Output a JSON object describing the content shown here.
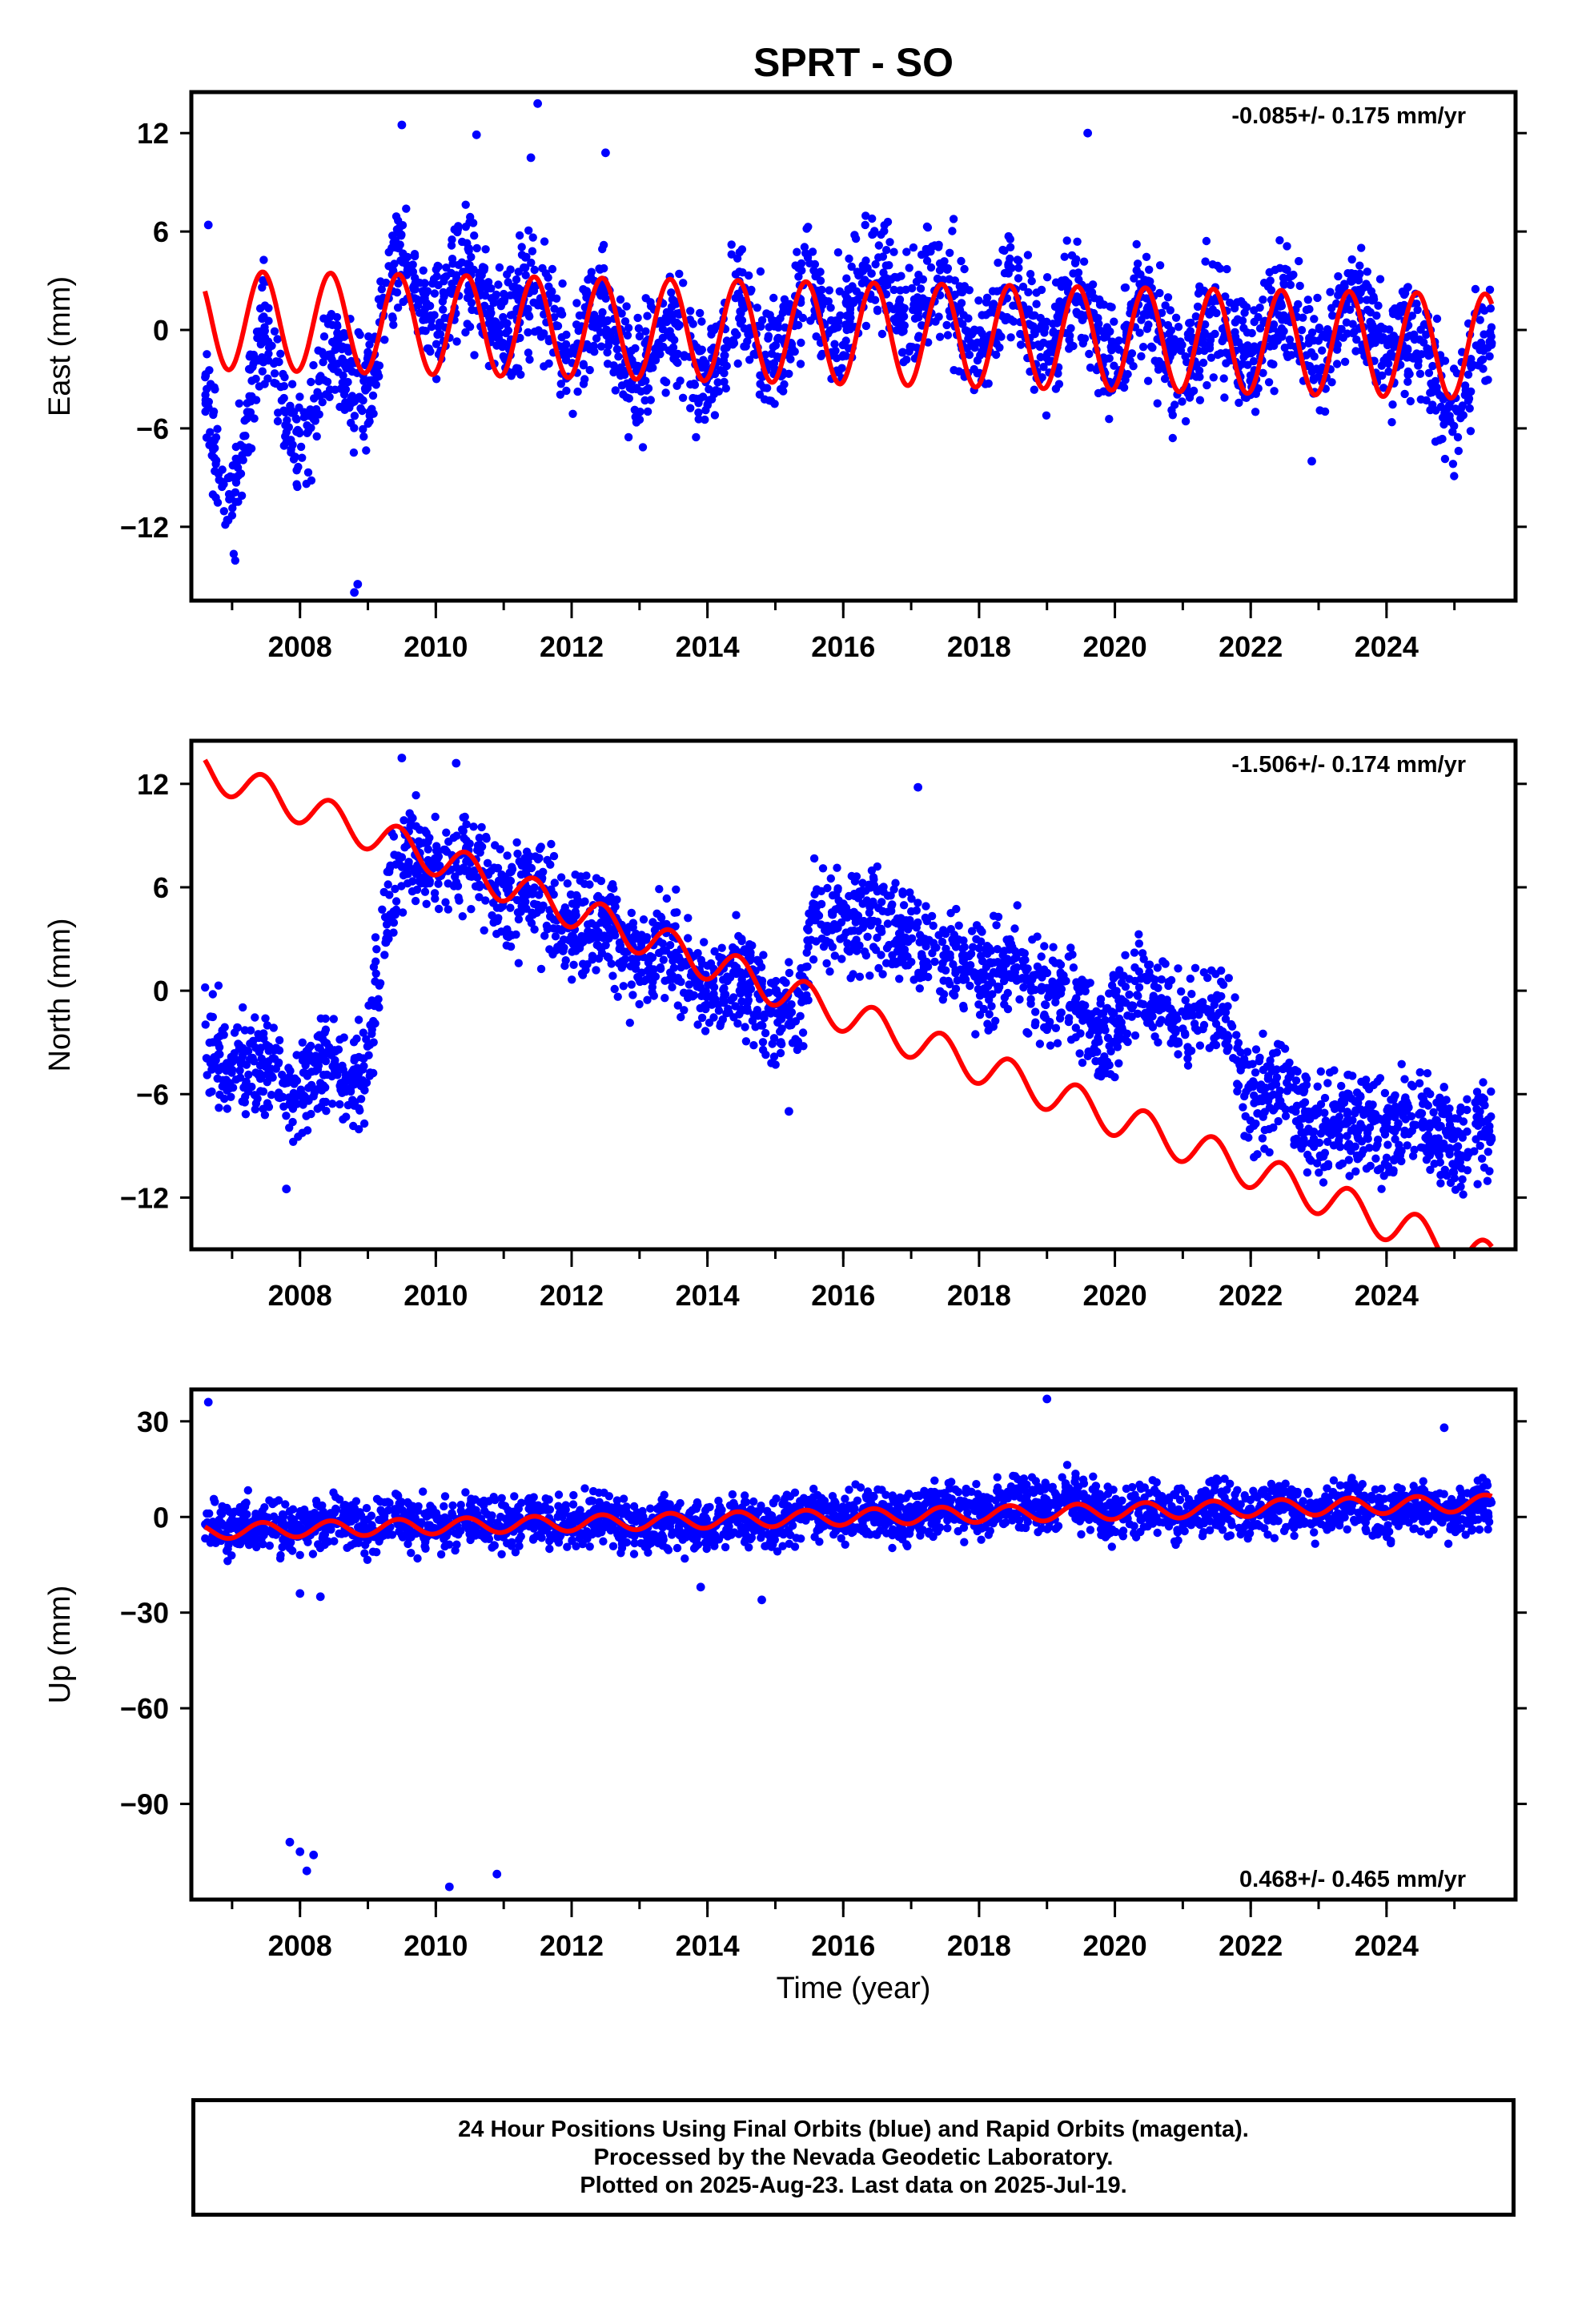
{
  "title": "SPRT - SO",
  "colors": {
    "observations": "#0000ff",
    "model": "#ff0000",
    "axes": "#000000"
  },
  "xaxis": {
    "label": "Time (year)",
    "range": [
      2006.4,
      2025.9
    ],
    "ticks": [
      2008,
      2010,
      2012,
      2014,
      2016,
      2018,
      2020,
      2022,
      2024
    ]
  },
  "footer": {
    "line1": "24 Hour Positions Using Final Orbits (blue) and Rapid Orbits (magenta).",
    "line2": "Processed by the Nevada Geodetic Laboratory.",
    "line3": "Plotted on 2025-Aug-23. Last data on 2025-Jul-19."
  },
  "chart_data": [
    {
      "type": "scatter",
      "component": "East",
      "ylabel": "East (mm)",
      "ylim": [
        -16.5,
        14.5
      ],
      "yticks": [
        12,
        6,
        0,
        -6,
        -12
      ],
      "velocity": "-0.085+/- 0.175 mm/yr",
      "velocity_position": "top-right",
      "data_start": 2006.6,
      "data_end": 2025.55,
      "series": [
        {
          "name": "Final Orbits (blue)",
          "kind": "daily-positions",
          "approx_trend": [
            [
              2006.6,
              -5
            ],
            [
              2007.0,
              -9
            ],
            [
              2007.5,
              -1
            ],
            [
              2008.0,
              -6
            ],
            [
              2008.5,
              -3
            ],
            [
              2009.0,
              -2
            ],
            [
              2009.5,
              3
            ],
            [
              2010.5,
              2
            ],
            [
              2012,
              0.5
            ],
            [
              2013,
              -1.5
            ],
            [
              2014,
              -1
            ],
            [
              2015,
              0
            ],
            [
              2016,
              2
            ],
            [
              2017,
              2.5
            ],
            [
              2018,
              1
            ],
            [
              2019,
              0.5
            ],
            [
              2020,
              0
            ],
            [
              2021,
              -0.5
            ],
            [
              2022,
              -0.5
            ],
            [
              2023,
              0
            ],
            [
              2024,
              0.5
            ],
            [
              2024.9,
              -4
            ],
            [
              2025.55,
              -2
            ]
          ],
          "approx_spread": 2.2,
          "outliers": [
            [
              2006.65,
              6.4
            ],
            [
              2008.85,
              -15.5
            ],
            [
              2008.8,
              -16
            ],
            [
              2009.5,
              12.5
            ],
            [
              2010.6,
              11.9
            ],
            [
              2011.4,
              10.5
            ],
            [
              2011.5,
              13.8
            ],
            [
              2012.5,
              10.8
            ],
            [
              2019.6,
              12
            ],
            [
              2022.9,
              -8
            ]
          ]
        },
        {
          "name": "Model",
          "kind": "fit",
          "offset": 0.6,
          "trend": -0.085,
          "amplitude": 3.0,
          "amplitude_end": 3.2
        }
      ]
    },
    {
      "type": "scatter",
      "component": "North",
      "ylabel": "North (mm)",
      "ylim": [
        -15.0,
        14.5
      ],
      "yticks": [
        12,
        6,
        0,
        -6,
        -12
      ],
      "velocity": "-1.506+/- 0.174 mm/yr",
      "velocity_position": "top-right",
      "data_start": 2006.6,
      "data_end": 2025.55,
      "series": [
        {
          "name": "Final Orbits (blue)",
          "kind": "daily-positions",
          "approx_trend": [
            [
              2006.6,
              -3
            ],
            [
              2007.5,
              -5
            ],
            [
              2008.5,
              -5
            ],
            [
              2008.9,
              -5
            ],
            [
              2009.3,
              5
            ],
            [
              2009.6,
              8
            ],
            [
              2010.5,
              7
            ],
            [
              2011.5,
              5
            ],
            [
              2012.5,
              3
            ],
            [
              2013.5,
              1.5
            ],
            [
              2014.5,
              0
            ],
            [
              2015.4,
              -1.5
            ],
            [
              2015.6,
              4.5
            ],
            [
              2016.5,
              4
            ],
            [
              2017.5,
              2
            ],
            [
              2018.5,
              1
            ],
            [
              2019.3,
              -0.5
            ],
            [
              2019.8,
              -2.5
            ],
            [
              2020.2,
              0
            ],
            [
              2021,
              -1
            ],
            [
              2021.6,
              -2
            ],
            [
              2022,
              -5.5
            ],
            [
              2023,
              -7.5
            ],
            [
              2024,
              -8
            ],
            [
              2025.55,
              -8.5
            ]
          ],
          "approx_spread": 1.8,
          "outliers": [
            [
              2009.5,
              13.5
            ],
            [
              2010.3,
              13.2
            ],
            [
              2017.1,
              11.8
            ],
            [
              2015.2,
              -7
            ],
            [
              2007.8,
              -11.5
            ]
          ]
        },
        {
          "name": "Model",
          "kind": "fit",
          "offset": 12.8,
          "trend": -1.506,
          "amplitude": 1.0,
          "amplitude_end": 1.1
        }
      ]
    },
    {
      "type": "scatter",
      "component": "Up",
      "ylabel": "Up (mm)",
      "ylim": [
        -120.0,
        40.0
      ],
      "yticks": [
        30,
        0,
        -30,
        -60,
        -90
      ],
      "velocity": "0.468+/- 0.465 mm/yr",
      "velocity_position": "bottom-right",
      "data_start": 2006.6,
      "data_end": 2025.55,
      "series": [
        {
          "name": "Final Orbits (blue)",
          "kind": "daily-positions",
          "approx_trend": [
            [
              2006.6,
              -3
            ],
            [
              2008,
              -3
            ],
            [
              2010,
              -2
            ],
            [
              2012,
              -2
            ],
            [
              2014,
              -2
            ],
            [
              2016,
              0
            ],
            [
              2018,
              2
            ],
            [
              2019,
              5
            ],
            [
              2020,
              2
            ],
            [
              2022,
              2
            ],
            [
              2024,
              3
            ],
            [
              2025.55,
              2
            ]
          ],
          "approx_spread": 5,
          "outliers": [
            [
              2006.65,
              36
            ],
            [
              2019.0,
              37
            ],
            [
              2024.85,
              28
            ],
            [
              2007.85,
              -102
            ],
            [
              2008.0,
              -105
            ],
            [
              2008.1,
              -111
            ],
            [
              2008.2,
              -106
            ],
            [
              2010.2,
              -116
            ],
            [
              2010.9,
              -112
            ],
            [
              2008.0,
              -24
            ],
            [
              2008.3,
              -25
            ],
            [
              2014.8,
              -26
            ],
            [
              2013.9,
              -22
            ]
          ]
        },
        {
          "name": "Model",
          "kind": "fit",
          "offset": -4.5,
          "trend": 0.468,
          "amplitude": 2.4,
          "amplitude_end": 2.6
        }
      ]
    }
  ]
}
